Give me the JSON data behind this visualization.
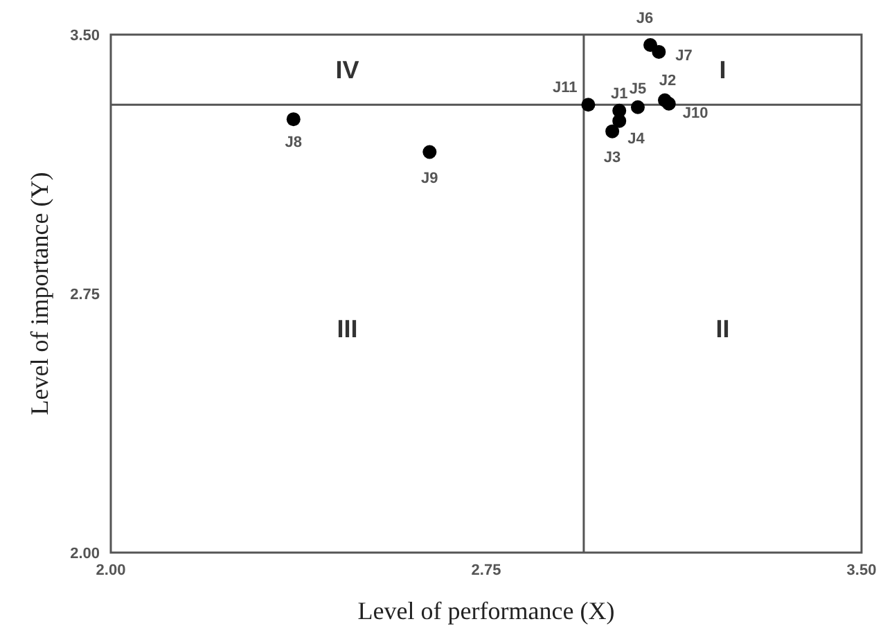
{
  "chart_data": {
    "type": "scatter",
    "xlabel": "Level of performance (X)",
    "ylabel": "Level of importance (Y)",
    "x": [
      3.016,
      3.107,
      3.002,
      3.016,
      3.053,
      3.078,
      3.095,
      2.365,
      2.637,
      3.115,
      2.954
    ],
    "series": [
      {
        "color": "#000000",
        "values": [
          3.28,
          3.31,
          3.22,
          3.25,
          3.29,
          3.47,
          3.45,
          3.255,
          3.16,
          3.3,
          3.297
        ]
      }
    ],
    "xlim": [
      2,
      3.5
    ],
    "ylim": [
      2,
      3.5
    ],
    "xticks": [
      {
        "value": 2,
        "label": "2.00"
      },
      {
        "value": 2.75,
        "label": "2.75"
      },
      {
        "value": 3.5,
        "label": "3.50"
      }
    ],
    "yticks": [
      {
        "value": 2,
        "label": "2.00"
      },
      {
        "value": 2.75,
        "label": "2.75"
      },
      {
        "value": 3.5,
        "label": "3.50"
      }
    ],
    "ref_lines": [
      {
        "axis": "x",
        "value": 2.945,
        "color": "#555555"
      },
      {
        "axis": "y",
        "value": 3.297,
        "color": "#555555"
      }
    ],
    "marker": "circle",
    "grid": false,
    "legend": false,
    "annotations": [
      {
        "text": "J1",
        "x": 3.016,
        "y": 3.28
      },
      {
        "text": "J2",
        "x": 3.107,
        "y": 3.31
      },
      {
        "text": "J3",
        "x": 3.002,
        "y": 3.22
      },
      {
        "text": "J4",
        "x": 3.016,
        "y": 3.25
      },
      {
        "text": "J5",
        "x": 3.053,
        "y": 3.29
      },
      {
        "text": "J6",
        "x": 3.078,
        "y": 3.47
      },
      {
        "text": "J7",
        "x": 3.095,
        "y": 3.45
      },
      {
        "text": "J8",
        "x": 2.365,
        "y": 3.255
      },
      {
        "text": "J9",
        "x": 2.637,
        "y": 3.16
      },
      {
        "text": "J10",
        "x": 3.115,
        "y": 3.3
      },
      {
        "text": "J11",
        "x": 2.954,
        "y": 3.297
      },
      "I",
      "II",
      "III",
      "IV"
    ]
  }
}
